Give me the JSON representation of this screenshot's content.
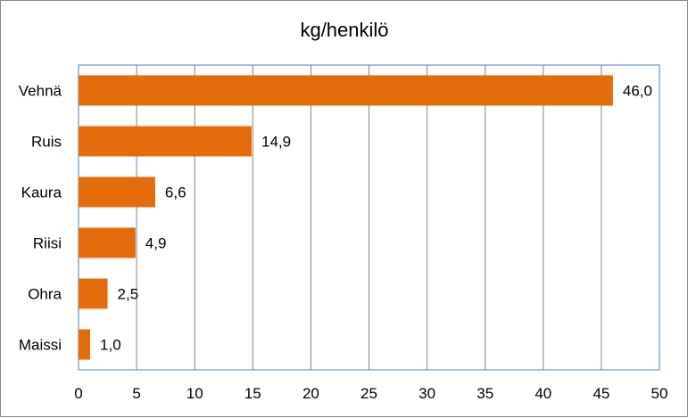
{
  "chart_data": {
    "type": "bar",
    "orientation": "horizontal",
    "title": "kg/henkilö",
    "categories": [
      "Vehnä",
      "Ruis",
      "Kaura",
      "Riisi",
      "Ohra",
      "Maissi"
    ],
    "values": [
      46.0,
      14.9,
      6.6,
      4.9,
      2.5,
      1.0
    ],
    "data_labels": [
      "46,0",
      "14,9",
      "6,6",
      "4,9",
      "2,5",
      "1,0"
    ],
    "xticks": [
      "0",
      "5",
      "10",
      "15",
      "20",
      "25",
      "30",
      "35",
      "40",
      "45",
      "50"
    ],
    "xlim": [
      0,
      50
    ],
    "xlabel": "",
    "ylabel": "",
    "grid": "vertical",
    "legend": "none",
    "colors": {
      "bar": "#E46C0A",
      "grid": "#868686",
      "plot_border": "#4F81BD"
    }
  }
}
